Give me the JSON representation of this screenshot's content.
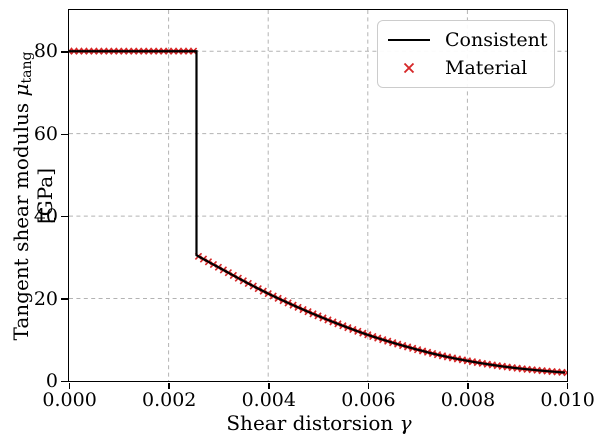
{
  "figure": {
    "background": "#ffffff",
    "frame_color": "#000000",
    "text_color": "#000000"
  },
  "chart_data": {
    "type": "line",
    "title": "",
    "xlabel": "Shear distorsion γ",
    "ylabel": "Tangent shear modulus μ_tang [GPa]",
    "xlabel_parts": {
      "text": "Shear distorsion ",
      "symbol": "γ"
    },
    "ylabel_parts": {
      "text": "Tangent shear modulus ",
      "symbol": "μ",
      "subscript": "tang",
      "unit": " [GPa]"
    },
    "xlim": [
      0,
      0.01
    ],
    "ylim": [
      0,
      90
    ],
    "xticks": [
      {
        "value": 0,
        "label": "0.000"
      },
      {
        "value": 0.002,
        "label": "0.002"
      },
      {
        "value": 0.004,
        "label": "0.004"
      },
      {
        "value": 0.006,
        "label": "0.006"
      },
      {
        "value": 0.008,
        "label": "0.008"
      },
      {
        "value": 0.01,
        "label": "0.010"
      }
    ],
    "yticks": [
      {
        "value": 0,
        "label": "0"
      },
      {
        "value": 20,
        "label": "20"
      },
      {
        "value": 40,
        "label": "40"
      },
      {
        "value": 60,
        "label": "60"
      },
      {
        "value": 80,
        "label": "80"
      }
    ],
    "grid": {
      "show": true,
      "style": "dashed",
      "color": "#b3b3b3"
    },
    "curve": {
      "plateau_value": 80,
      "yield_strain": 0.00256,
      "post_yield_samples": [
        [
          0.00256,
          30.5
        ],
        [
          0.003,
          27.6
        ],
        [
          0.0035,
          24.3
        ],
        [
          0.004,
          21.2
        ],
        [
          0.0045,
          18.4
        ],
        [
          0.005,
          15.8
        ],
        [
          0.0055,
          13.4
        ],
        [
          0.006,
          11.2
        ],
        [
          0.0065,
          9.3
        ],
        [
          0.007,
          7.6
        ],
        [
          0.0075,
          6.1
        ],
        [
          0.008,
          4.9
        ],
        [
          0.0085,
          3.9
        ],
        [
          0.009,
          3.1
        ],
        [
          0.0095,
          2.5
        ],
        [
          0.01,
          2.0
        ]
      ]
    },
    "series": [
      {
        "name": "Consistent",
        "type": "line",
        "color": "#000000"
      },
      {
        "name": "Material",
        "type": "scatter",
        "marker": "x",
        "color": "#d62728",
        "x_start": 0,
        "x_step": 0.0001,
        "x_count": 101
      }
    ],
    "legend": {
      "position": "upper-right",
      "items": [
        {
          "label": "Consistent",
          "type": "line",
          "color": "#000000"
        },
        {
          "label": "Material",
          "type": "x",
          "color": "#d62728"
        }
      ]
    }
  }
}
